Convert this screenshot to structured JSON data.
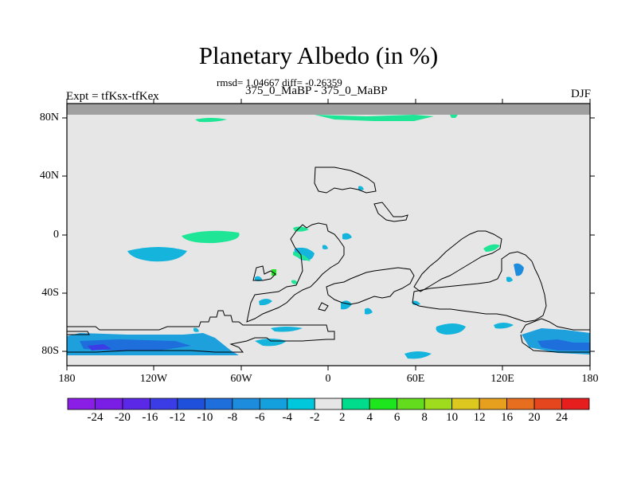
{
  "title": "Planetary Albedo (in %)",
  "stats": "rmsd= 1.04667 diff= -0.26359",
  "subtitle": "375_0_MaBP - 375_0_MaBP",
  "left_label": "Expt = tfKsx-tfKex",
  "right_label": "DJF",
  "map": {
    "lon_range": [
      -180,
      180
    ],
    "lat_range": [
      -90,
      90
    ],
    "x_ticks": [
      "180",
      "120W",
      "60W",
      "0",
      "60E",
      "120E",
      "180"
    ],
    "y_ticks": [
      "80N",
      "40N",
      "0",
      "40S",
      "80S"
    ],
    "colors": {
      "background": "#e6e6e6",
      "missing_band": "#a0a0a0",
      "land_outline": "#000000"
    }
  },
  "colorbar": {
    "labels": [
      "-24",
      "-20",
      "-16",
      "-12",
      "-10",
      "-8",
      "-6",
      "-4",
      "-2",
      "2",
      "4",
      "6",
      "8",
      "10",
      "12",
      "16",
      "20",
      "24"
    ],
    "colors": [
      "#8a1ee6",
      "#7a1ee6",
      "#5a28e6",
      "#3c3ce6",
      "#1e50dc",
      "#1e6edc",
      "#1e8cdc",
      "#14a0dc",
      "#00c8dc",
      "#e6e6e6",
      "#00dc8c",
      "#1ee61e",
      "#64dc1e",
      "#a0dc1e",
      "#dcc81e",
      "#e6a01e",
      "#e66e1e",
      "#e6461e",
      "#e61e1e"
    ]
  }
}
